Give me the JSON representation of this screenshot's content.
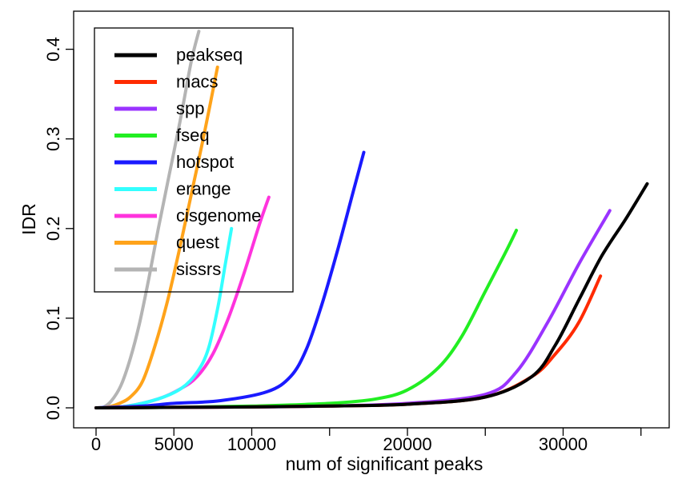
{
  "chart_data": {
    "type": "line",
    "title": "",
    "xlabel": "num of significant peaks",
    "ylabel": "IDR",
    "xlim": [
      0,
      36000
    ],
    "ylim": [
      0,
      0.42
    ],
    "x_ticks": [
      0,
      5000,
      10000,
      20000,
      30000
    ],
    "x_minor_ticks": [
      15000,
      25000,
      35000
    ],
    "y_ticks": [
      0.0,
      0.1,
      0.2,
      0.3,
      0.4
    ],
    "y_tick_labels": [
      "0.0",
      "0.1",
      "0.2",
      "0.3",
      "0.4"
    ],
    "grid": false,
    "legend": {
      "position": "top-left",
      "frame": true
    },
    "series": [
      {
        "name": "peakseq",
        "color": "#000000",
        "x": [
          0,
          5000,
          10000,
          15000,
          20000,
          25000,
          28000,
          29500,
          31000,
          32500,
          34000,
          35400
        ],
        "y": [
          0,
          0.0005,
          0.001,
          0.002,
          0.004,
          0.012,
          0.035,
          0.07,
          0.12,
          0.17,
          0.21,
          0.25
        ]
      },
      {
        "name": "macs",
        "color": "#ff2a00",
        "x": [
          0,
          5000,
          10000,
          15000,
          20000,
          25000,
          28000,
          29500,
          31000,
          32400
        ],
        "y": [
          0,
          0.0005,
          0.001,
          0.002,
          0.004,
          0.012,
          0.035,
          0.06,
          0.095,
          0.147
        ]
      },
      {
        "name": "spp",
        "color": "#9a33ff",
        "x": [
          0,
          5000,
          10000,
          15000,
          20000,
          25000,
          27000,
          29000,
          31000,
          33000
        ],
        "y": [
          0,
          0.0005,
          0.001,
          0.002,
          0.005,
          0.015,
          0.04,
          0.095,
          0.16,
          0.22
        ]
      },
      {
        "name": "fseq",
        "color": "#22ee22",
        "x": [
          0,
          5000,
          10000,
          15000,
          18000,
          20000,
          22000,
          23500,
          25000,
          26200,
          27000
        ],
        "y": [
          0,
          0.0005,
          0.002,
          0.005,
          0.01,
          0.02,
          0.045,
          0.08,
          0.13,
          0.17,
          0.198
        ]
      },
      {
        "name": "hotspot",
        "color": "#1a1aff",
        "x": [
          0,
          3000,
          5000,
          8000,
          11000,
          12500,
          13500,
          14500,
          15500,
          16500,
          17200
        ],
        "y": [
          0,
          0.002,
          0.005,
          0.008,
          0.018,
          0.035,
          0.065,
          0.115,
          0.175,
          0.24,
          0.285
        ]
      },
      {
        "name": "erange",
        "color": "#33ffff",
        "x": [
          0,
          2000,
          4000,
          5500,
          6500,
          7200,
          7800,
          8300,
          8700
        ],
        "y": [
          0,
          0.002,
          0.01,
          0.022,
          0.04,
          0.065,
          0.11,
          0.16,
          0.2
        ]
      },
      {
        "name": "cisgenome",
        "color": "#ff33dd",
        "x": [
          0,
          2000,
          4000,
          5500,
          6500,
          7500,
          8500,
          9500,
          10500,
          11100
        ],
        "y": [
          0,
          0.002,
          0.01,
          0.022,
          0.035,
          0.06,
          0.1,
          0.15,
          0.205,
          0.235
        ]
      },
      {
        "name": "quest",
        "color": "#ffa31a",
        "x": [
          0,
          800,
          1500,
          2200,
          3000,
          3800,
          4600,
          5400,
          6200,
          7000,
          7800
        ],
        "y": [
          0,
          0.001,
          0.005,
          0.012,
          0.03,
          0.07,
          0.12,
          0.18,
          0.245,
          0.31,
          0.38
        ]
      },
      {
        "name": "sissrs",
        "color": "#b4b4b4",
        "x": [
          0,
          500,
          1000,
          1600,
          2200,
          2800,
          3400,
          4000,
          4700,
          5400,
          6100,
          6600
        ],
        "y": [
          0,
          0.001,
          0.008,
          0.025,
          0.055,
          0.095,
          0.145,
          0.2,
          0.26,
          0.32,
          0.385,
          0.42
        ]
      }
    ]
  }
}
